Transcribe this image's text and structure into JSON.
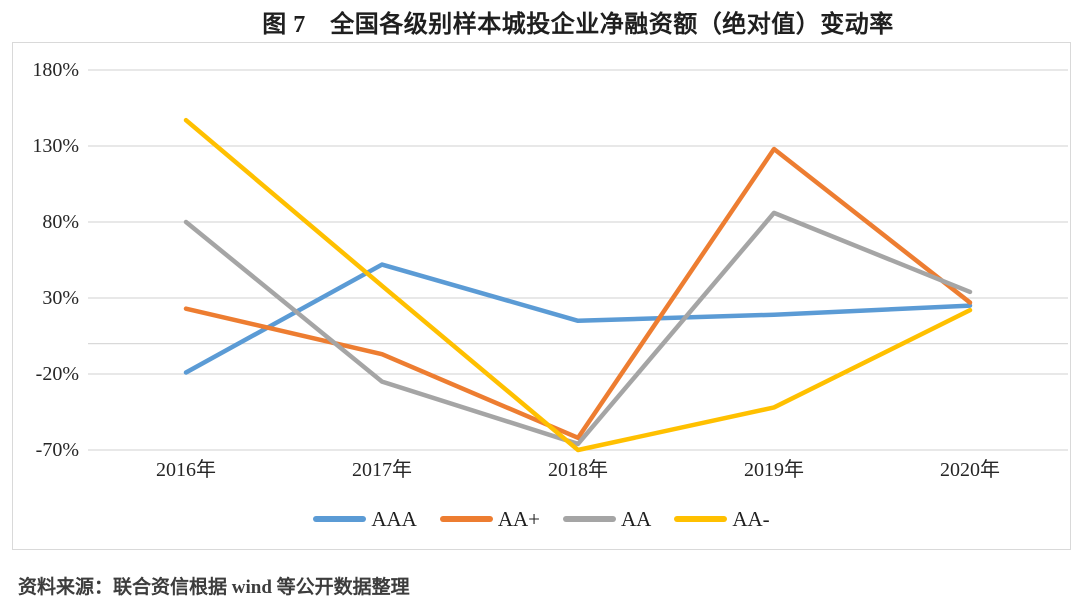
{
  "title": "图 7　全国各级别样本城投企业净融资额（绝对值）变动率",
  "source": "资料来源：联合资信根据 wind 等公开数据整理",
  "colors": {
    "gridline": "#d9d9d9",
    "axis_line": "#d9d9d9",
    "chart_border": "#d9d9d9",
    "background": "#ffffff",
    "text": "#262626"
  },
  "chart_data": {
    "type": "line",
    "title": "图 7　全国各级别样本城投企业净融资额（绝对值）变动率",
    "xlabel": "",
    "ylabel": "",
    "categories": [
      "2016年",
      "2017年",
      "2018年",
      "2019年",
      "2020年"
    ],
    "series": [
      {
        "name": "AAA",
        "color": "#5B9BD5",
        "values": [
          -19,
          52,
          15,
          19,
          25
        ]
      },
      {
        "name": "AA+",
        "color": "#ED7D31",
        "values": [
          23,
          -7,
          -62,
          128,
          27
        ]
      },
      {
        "name": "AA",
        "color": "#A5A5A5",
        "values": [
          80,
          -25,
          -66,
          86,
          34
        ]
      },
      {
        "name": "AA-",
        "color": "#FFC000",
        "values": [
          147,
          38,
          -70,
          -42,
          22
        ]
      }
    ],
    "y_ticks": [
      180,
      130,
      80,
      30,
      -20,
      -70
    ],
    "y_tick_labels": [
      "180%",
      "130%",
      "80%",
      "30%",
      "-20%",
      "-70%"
    ],
    "ylim": [
      -95,
      198
    ],
    "zero_axis_line": true,
    "grid": "horizontal",
    "legend_position": "bottom-center"
  }
}
